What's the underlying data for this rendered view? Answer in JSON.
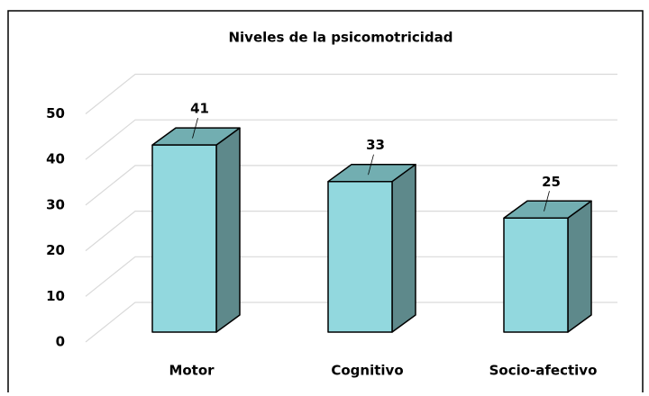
{
  "chart_data": {
    "type": "bar3d",
    "title": "Niveles de la psicomotricidad",
    "categories": [
      "Motor",
      "Cognitivo",
      "Socio-afectivo"
    ],
    "values": [
      41,
      33,
      25
    ],
    "colors": {
      "front": "#92d8de",
      "top": "#72aeb1",
      "side": "#5e898b"
    },
    "ylim": [
      0,
      50
    ],
    "yticks": [
      0,
      10,
      20,
      30,
      40,
      50
    ],
    "grid": true
  }
}
